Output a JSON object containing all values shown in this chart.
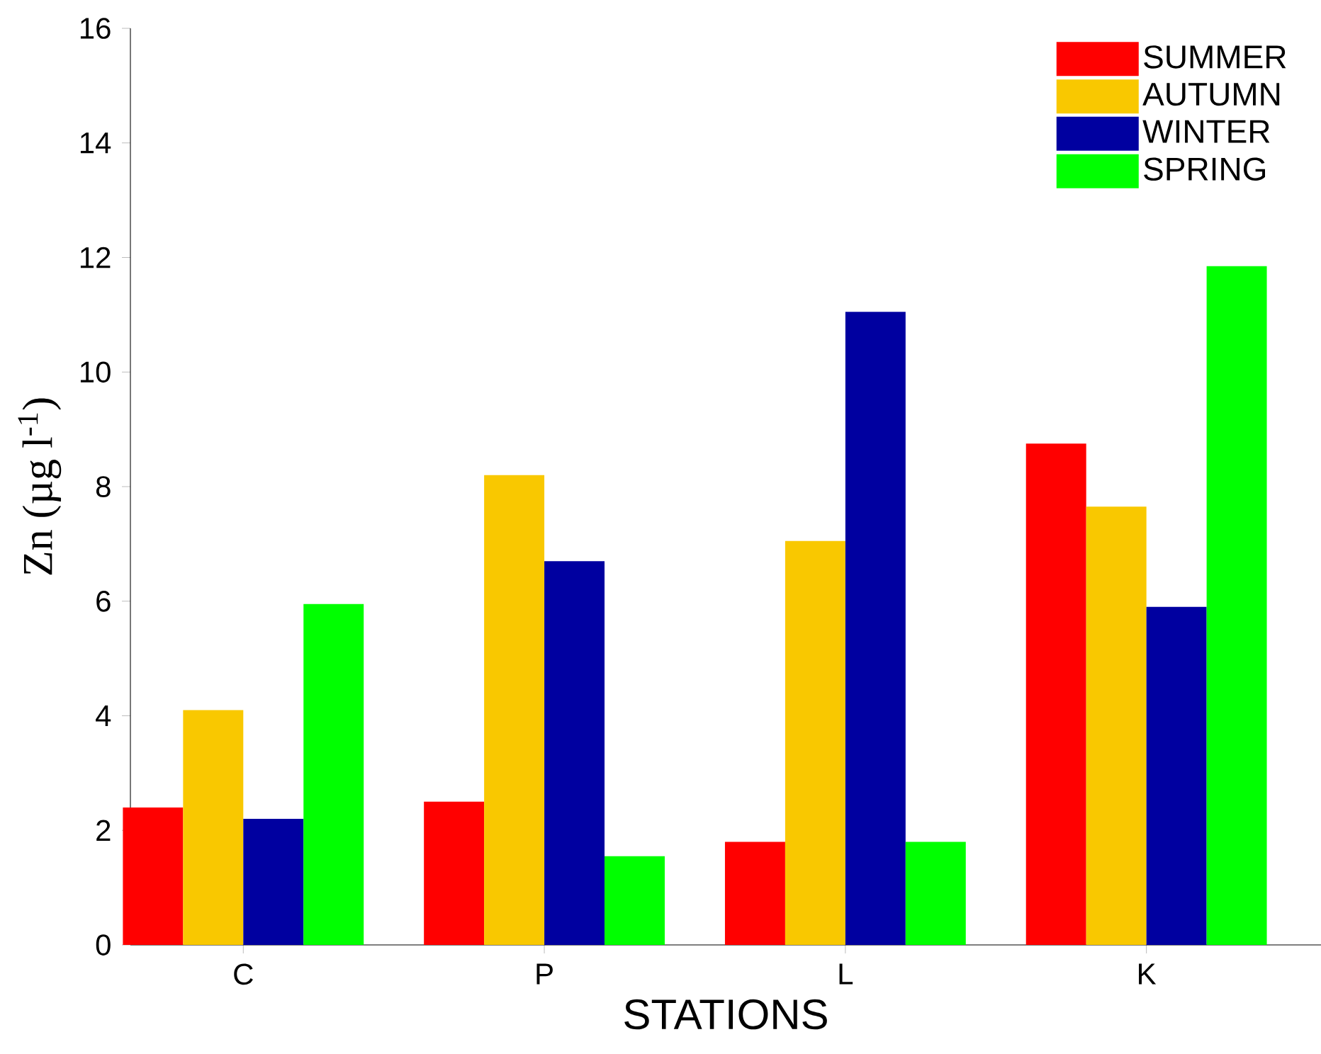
{
  "chart_data": {
    "type": "bar",
    "xlabel": "STATIONS",
    "ylabel": "Zn (µg l$^{-1}$)",
    "categories": [
      "C",
      "P",
      "L",
      "K"
    ],
    "series": [
      {
        "name": "SUMMER",
        "color": "#ff0000",
        "values": [
          2.4,
          2.5,
          1.8,
          8.75
        ]
      },
      {
        "name": "AUTUMN",
        "color": "#f9c800",
        "values": [
          4.1,
          8.2,
          7.05,
          7.65
        ]
      },
      {
        "name": "WINTER",
        "color": "#0000a0",
        "values": [
          2.2,
          6.7,
          11.05,
          5.9
        ]
      },
      {
        "name": "SPRING",
        "color": "#00ff00",
        "values": [
          5.95,
          1.55,
          1.8,
          11.85
        ]
      }
    ],
    "ylim": [
      0,
      16
    ],
    "yticks": [
      0,
      2,
      4,
      6,
      8,
      10,
      12,
      14,
      16
    ],
    "grid": false,
    "legend": "top right"
  }
}
